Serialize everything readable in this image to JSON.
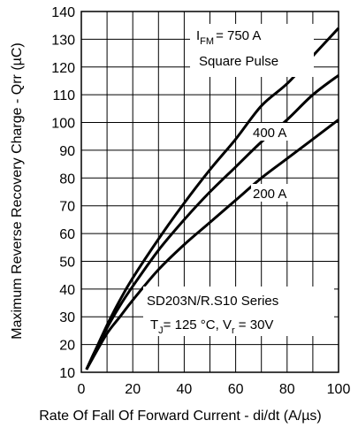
{
  "chart_data": {
    "type": "line",
    "xlabel": "Rate Of Fall Of Forward Current - di/dt (A/µs)",
    "ylabel": "Maximum Reverse Recovery Charge - Qrr (µC)",
    "xlim": [
      0,
      100
    ],
    "ylim": [
      10,
      140
    ],
    "xticks": [
      "0",
      "20",
      "40",
      "60",
      "80",
      "100"
    ],
    "yticks": [
      "10",
      "20",
      "30",
      "40",
      "50",
      "60",
      "70",
      "80",
      "90",
      "100",
      "110",
      "120",
      "130",
      "140"
    ],
    "grid": true,
    "series": [
      {
        "name": "I FM = 750 A",
        "x": [
          2,
          5,
          10,
          15,
          20,
          30,
          40,
          50,
          60,
          70,
          80,
          90,
          100
        ],
        "y": [
          11,
          17,
          27,
          36,
          44,
          58,
          71,
          83,
          94,
          106,
          114,
          124,
          134
        ]
      },
      {
        "name": "400 A",
        "x": [
          2,
          5,
          10,
          15,
          20,
          30,
          40,
          50,
          60,
          70,
          80,
          90,
          100
        ],
        "y": [
          11,
          17,
          26,
          34,
          41,
          54,
          65,
          75,
          84,
          93,
          101,
          110,
          117
        ]
      },
      {
        "name": "200 A",
        "x": [
          2,
          5,
          10,
          15,
          20,
          30,
          40,
          50,
          60,
          70,
          80,
          90,
          100
        ],
        "y": [
          11,
          16,
          24,
          30,
          36,
          47,
          56,
          64,
          72,
          80,
          87,
          94,
          101
        ]
      }
    ],
    "annotations": {
      "ifm_main": "I",
      "ifm_sub": "FM",
      "ifm_value": "= 750 A",
      "square_pulse": "Square Pulse",
      "label_400": "400 A",
      "label_200": "200 A",
      "series_name": "SD203N/R.S10 Series",
      "cond_t": "T",
      "cond_t_sub": "J",
      "cond_t_rest": "= 125 °C, V",
      "cond_v_sub": "r",
      "cond_v_rest": " = 30V"
    }
  }
}
